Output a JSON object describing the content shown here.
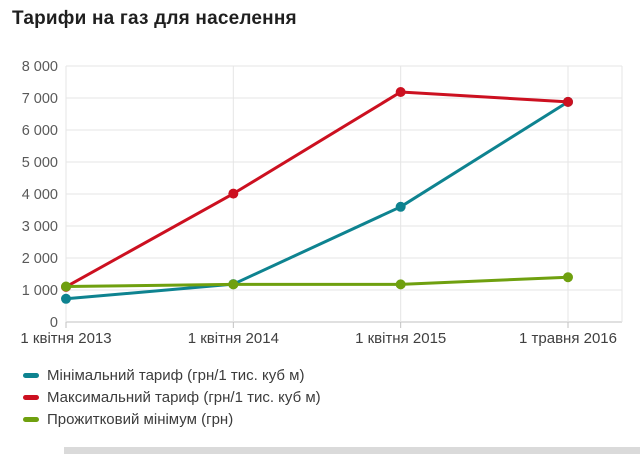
{
  "header": {
    "title": "Тарифи на газ для населення"
  },
  "chart_data": {
    "type": "line",
    "title": "Тарифи на газ для населення",
    "categories": [
      "1 квітня 2013",
      "1 квітня 2014",
      "1 квітня 2015",
      "1 травня 2016"
    ],
    "series": [
      {
        "name": "Мінімальний тариф (грн/1 тис. куб м)",
        "color": "#0E8390",
        "values": [
          725,
          1182,
          3600,
          6879
        ]
      },
      {
        "name": "Максимальний тариф (грн/1 тис. куб м)",
        "color": "#CC1020",
        "values": [
          1098,
          4011,
          7188,
          6879
        ]
      },
      {
        "name": "Прожитковий мінімум (грн)",
        "color": "#6FA00F",
        "values": [
          1108,
          1176,
          1176,
          1399
        ]
      }
    ],
    "ylim": [
      0,
      8000
    ],
    "y_tick_step": 1000,
    "y_tick_labels": [
      "0",
      "1 000",
      "2 000",
      "3 000",
      "4 000",
      "5 000",
      "6 000",
      "7 000",
      "8 000"
    ],
    "grid": true,
    "legend_position": "bottom-left",
    "colors": {
      "gridline": "#E5E5E5",
      "axis": "#C2C2C2",
      "y_tick_text": "#595959",
      "x_tick_text": "#404040",
      "title_text": "#1F1F1F",
      "legend_text": "#3C3C3C",
      "scrollbar": "#DADADA",
      "background": "#FFFFFF"
    }
  }
}
